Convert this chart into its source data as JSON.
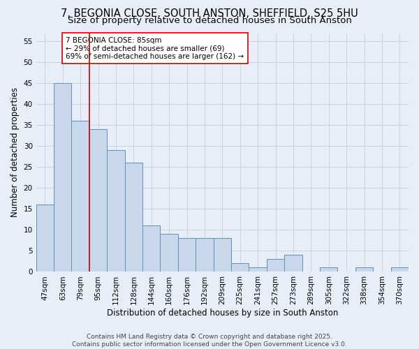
{
  "title_line1": "7, BEGONIA CLOSE, SOUTH ANSTON, SHEFFIELD, S25 5HU",
  "title_line2": "Size of property relative to detached houses in South Anston",
  "xlabel": "Distribution of detached houses by size in South Anston",
  "ylabel": "Number of detached properties",
  "categories": [
    "47sqm",
    "63sqm",
    "79sqm",
    "95sqm",
    "112sqm",
    "128sqm",
    "144sqm",
    "160sqm",
    "176sqm",
    "192sqm",
    "209sqm",
    "225sqm",
    "241sqm",
    "257sqm",
    "273sqm",
    "289sqm",
    "305sqm",
    "322sqm",
    "338sqm",
    "354sqm",
    "370sqm"
  ],
  "values": [
    16,
    45,
    36,
    34,
    29,
    26,
    11,
    9,
    8,
    8,
    8,
    2,
    1,
    3,
    4,
    0,
    1,
    0,
    1,
    0,
    1
  ],
  "bar_color": "#c8d8ea",
  "bar_edge_color": "#6090b8",
  "vline_color": "#cc0000",
  "vline_x": 2.5,
  "annotation_text": "7 BEGONIA CLOSE: 85sqm\n← 29% of detached houses are smaller (69)\n69% of semi-detached houses are larger (162) →",
  "annotation_box_color": "#ffffff",
  "annotation_box_edge": "#cc0000",
  "ylim": [
    0,
    57
  ],
  "yticks": [
    0,
    5,
    10,
    15,
    20,
    25,
    30,
    35,
    40,
    45,
    50,
    55
  ],
  "grid_color": "#c8d4e4",
  "background_color": "#e8eef8",
  "footer_text": "Contains HM Land Registry data © Crown copyright and database right 2025.\nContains public sector information licensed under the Open Government Licence v3.0.",
  "title_fontsize": 10.5,
  "subtitle_fontsize": 9.5,
  "axis_label_fontsize": 8.5,
  "tick_fontsize": 7.5,
  "annotation_fontsize": 7.5,
  "footer_fontsize": 6.5
}
